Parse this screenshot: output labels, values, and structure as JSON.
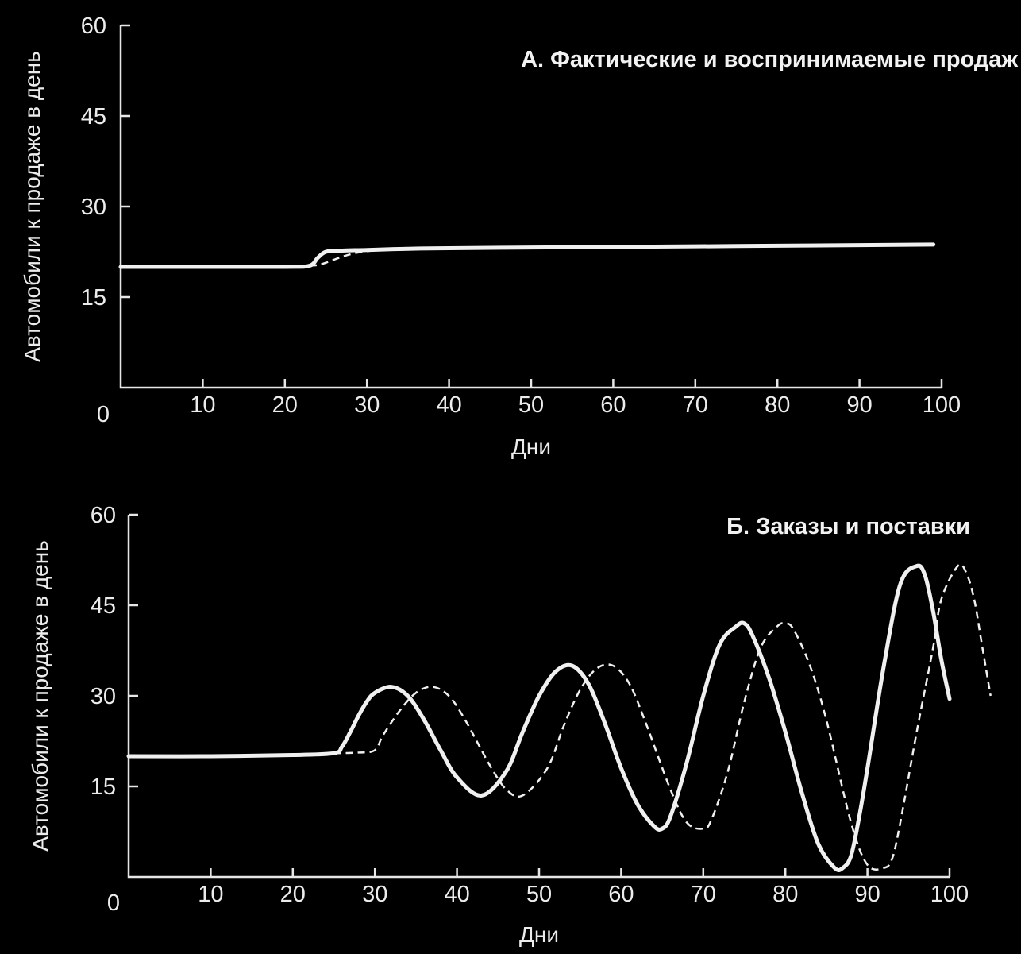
{
  "chart_data": [
    {
      "type": "line",
      "title": "А. Фактические и воспринимаемые продаж",
      "xlabel": "Дни",
      "ylabel": "Автомобили к продаже в день",
      "xlim": [
        0,
        100
      ],
      "ylim": [
        0,
        60
      ],
      "x_ticks": [
        "0",
        "10",
        "20",
        "30",
        "40",
        "50",
        "60",
        "70",
        "80",
        "90",
        "100"
      ],
      "y_ticks": [
        "15",
        "30",
        "45",
        "60"
      ],
      "grid": false,
      "series": [
        {
          "style": "solid",
          "x": [
            0,
            10,
            20,
            23,
            24,
            25,
            27,
            30,
            35,
            40,
            50,
            60,
            70,
            80,
            90,
            99
          ],
          "y": [
            20,
            20,
            20,
            20.2,
            21.5,
            22.5,
            22.7,
            22.8,
            23,
            23.1,
            23.2,
            23.3,
            23.4,
            23.5,
            23.6,
            23.7
          ]
        },
        {
          "style": "dashed",
          "x": [
            23,
            24,
            25,
            26,
            27,
            28,
            29,
            30,
            32,
            34
          ],
          "y": [
            20.2,
            20.3,
            20.7,
            21.2,
            21.7,
            22.1,
            22.4,
            22.6,
            22.9,
            23
          ]
        }
      ]
    },
    {
      "type": "line",
      "title": "Б. Заказы и поставки",
      "xlabel": "Дни",
      "ylabel": "Автомобили к продаже в день",
      "xlim": [
        0,
        100
      ],
      "ylim": [
        0,
        60
      ],
      "x_ticks": [
        "0",
        "10",
        "20",
        "30",
        "40",
        "50",
        "60",
        "70",
        "80",
        "90",
        "100"
      ],
      "y_ticks": [
        "15",
        "30",
        "45",
        "60"
      ],
      "grid": false,
      "series": [
        {
          "style": "solid",
          "x": [
            0,
            10,
            20,
            25,
            26,
            27,
            28,
            29,
            30,
            32,
            34,
            36,
            38,
            40,
            43,
            46,
            48,
            50,
            52,
            54,
            56,
            58,
            60,
            62,
            64,
            65,
            66,
            68,
            70,
            72,
            74,
            75,
            76,
            78,
            80,
            82,
            84,
            86,
            87,
            88,
            89,
            90,
            92,
            94,
            96,
            97,
            98,
            99,
            100
          ],
          "y": [
            20,
            20,
            20.2,
            20.5,
            21.6,
            24,
            26.7,
            29,
            30.5,
            31.5,
            30,
            26,
            21,
            16.5,
            13.5,
            17.5,
            24,
            30,
            34,
            35,
            32,
            25.5,
            18,
            12,
            8.4,
            8,
            10,
            19,
            30,
            38.5,
            41.5,
            42,
            40,
            33,
            24,
            14,
            5.5,
            1.5,
            1.5,
            3.5,
            10,
            18,
            35,
            48.5,
            51.5,
            50,
            44,
            36,
            29.5
          ]
        },
        {
          "style": "dashed",
          "x": [
            25,
            28,
            30,
            31,
            33,
            35,
            37,
            39,
            41,
            44,
            46,
            48,
            51,
            53,
            55,
            57,
            59,
            61,
            63,
            66,
            68,
            70,
            71,
            73,
            75,
            77,
            79,
            80,
            81,
            83,
            85,
            88,
            90,
            92,
            93,
            94,
            96,
            98,
            99,
            101,
            102,
            103,
            104,
            105
          ],
          "y": [
            20.5,
            20.6,
            21,
            23.5,
            27.5,
            30.5,
            31.5,
            30,
            26,
            18.5,
            14.5,
            13.5,
            18,
            25,
            31,
            34.5,
            35,
            32,
            25.5,
            14.5,
            9,
            8,
            9.5,
            17.5,
            29,
            38,
            41.5,
            42,
            41,
            35,
            26,
            9,
            2,
            1.5,
            3,
            9,
            24,
            38,
            46,
            51.5,
            50.5,
            46,
            38,
            30
          ]
        }
      ]
    }
  ]
}
